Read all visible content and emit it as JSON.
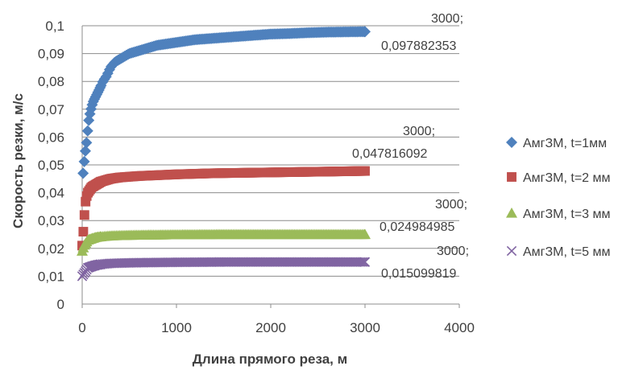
{
  "chart_data": {
    "type": "scatter",
    "title": "",
    "xlabel": "Длина прямого реза, м",
    "ylabel": "Скорость резки, м/с",
    "xlim": [
      0,
      4000
    ],
    "ylim": [
      0,
      0.1
    ],
    "x_ticks": [
      "0",
      "1000",
      "2000",
      "3000",
      "4000"
    ],
    "y_ticks": [
      "0",
      "0,01",
      "0,02",
      "0,03",
      "0,04",
      "0,05",
      "0,06",
      "0,07",
      "0,08",
      "0,09",
      "0,1"
    ],
    "grid": "horizontal",
    "legend": "right",
    "series": [
      {
        "name": "АмгЗМ, t=1мм",
        "color": "#4f81bd",
        "marker": "diamond",
        "points": [
          [
            10,
            0.047
          ],
          [
            30,
            0.054
          ],
          [
            50,
            0.059
          ],
          [
            60,
            0.063
          ],
          [
            70,
            0.066
          ],
          [
            80,
            0.068
          ],
          [
            100,
            0.071
          ],
          [
            120,
            0.073
          ],
          [
            150,
            0.075
          ],
          [
            180,
            0.077
          ],
          [
            220,
            0.08
          ],
          [
            260,
            0.082
          ],
          [
            300,
            0.085
          ],
          [
            350,
            0.087
          ],
          [
            400,
            0.088
          ],
          [
            450,
            0.089
          ],
          [
            500,
            0.09
          ],
          [
            600,
            0.091
          ],
          [
            700,
            0.092
          ],
          [
            800,
            0.093
          ],
          [
            1000,
            0.094
          ],
          [
            1200,
            0.095
          ],
          [
            1400,
            0.0955
          ],
          [
            1600,
            0.096
          ],
          [
            1800,
            0.0965
          ],
          [
            2000,
            0.097
          ],
          [
            2200,
            0.0972
          ],
          [
            2400,
            0.0975
          ],
          [
            2600,
            0.0977
          ],
          [
            2800,
            0.0978
          ],
          [
            3000,
            0.097882353
          ]
        ],
        "data_label": {
          "line1": "3000;",
          "line2": "0,097882353"
        }
      },
      {
        "name": "АмгЗМ, t=2 мм",
        "color": "#c0504d",
        "marker": "square",
        "points": [
          [
            0,
            0.021
          ],
          [
            10,
            0.025
          ],
          [
            20,
            0.03
          ],
          [
            30,
            0.035
          ],
          [
            40,
            0.038
          ],
          [
            60,
            0.04
          ],
          [
            80,
            0.041
          ],
          [
            100,
            0.042
          ],
          [
            150,
            0.043
          ],
          [
            200,
            0.044
          ],
          [
            300,
            0.045
          ],
          [
            400,
            0.0455
          ],
          [
            600,
            0.046
          ],
          [
            800,
            0.0463
          ],
          [
            1000,
            0.0466
          ],
          [
            1200,
            0.0468
          ],
          [
            1400,
            0.047
          ],
          [
            1600,
            0.0471
          ],
          [
            1800,
            0.0472
          ],
          [
            2000,
            0.0473
          ],
          [
            2200,
            0.0474
          ],
          [
            2400,
            0.0475
          ],
          [
            2600,
            0.0476
          ],
          [
            2800,
            0.0477
          ],
          [
            3000,
            0.047816092
          ]
        ],
        "data_label": {
          "line1": "3000;",
          "line2": "0,047816092"
        }
      },
      {
        "name": "АмгЗМ, t=3 мм",
        "color": "#9bbb59",
        "marker": "triangle",
        "points": [
          [
            0,
            0.019
          ],
          [
            20,
            0.021
          ],
          [
            40,
            0.022
          ],
          [
            60,
            0.023
          ],
          [
            100,
            0.0235
          ],
          [
            150,
            0.024
          ],
          [
            200,
            0.0242
          ],
          [
            300,
            0.0245
          ],
          [
            500,
            0.0247
          ],
          [
            700,
            0.0248
          ],
          [
            1000,
            0.0249
          ],
          [
            1500,
            0.025
          ],
          [
            2000,
            0.025
          ],
          [
            2500,
            0.025
          ],
          [
            3000,
            0.024984985
          ]
        ],
        "data_label": {
          "line1": "3000;",
          "line2": "0,024984985"
        }
      },
      {
        "name": "АмгЗМ, t=5 мм",
        "color": "#8064a2",
        "marker": "x",
        "points": [
          [
            0,
            0.01
          ],
          [
            20,
            0.011
          ],
          [
            40,
            0.012
          ],
          [
            60,
            0.013
          ],
          [
            100,
            0.0135
          ],
          [
            150,
            0.014
          ],
          [
            200,
            0.0143
          ],
          [
            300,
            0.0146
          ],
          [
            500,
            0.0148
          ],
          [
            700,
            0.0149
          ],
          [
            1000,
            0.015
          ],
          [
            1500,
            0.0151
          ],
          [
            2000,
            0.0151
          ],
          [
            2500,
            0.0151
          ],
          [
            3000,
            0.015099819
          ]
        ],
        "data_label": {
          "line1": "3000;",
          "line2": "0,015099819"
        }
      }
    ]
  }
}
